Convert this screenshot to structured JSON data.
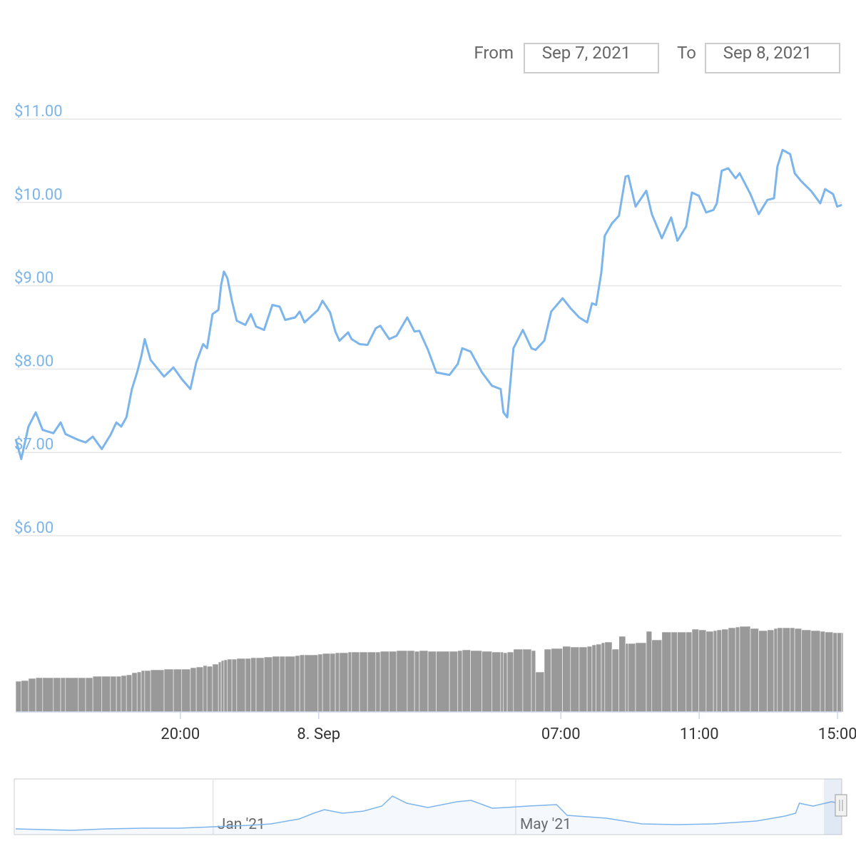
{
  "range_selector": {
    "from_label": "From",
    "from": "Sep 7, 2021",
    "to_label": "To",
    "to": "Sep 8, 2021"
  },
  "chart_data": {
    "type": "line",
    "color": "#7cb5ec",
    "x": [
      15.24,
      15.4,
      15.61,
      15.82,
      16.02,
      16.33,
      16.54,
      16.68,
      17.05,
      17.26,
      17.47,
      17.73,
      17.98,
      18.15,
      18.29,
      18.44,
      18.6,
      18.75,
      18.87,
      18.97,
      19.14,
      19.53,
      19.8,
      20.04,
      20.29,
      20.46,
      20.66,
      20.77,
      20.93,
      21.1,
      21.18,
      21.26,
      21.36,
      21.49,
      21.63,
      21.88,
      22.04,
      22.19,
      22.42,
      22.66,
      22.87,
      23.03,
      23.32,
      23.45,
      23.59,
      23.98,
      24.11,
      24.33,
      24.48,
      24.6,
      24.85,
      24.95,
      25.18,
      25.41,
      25.65,
      25.78,
      26.04,
      26.25,
      26.56,
      26.77,
      26.91,
      27.16,
      27.4,
      27.78,
      28.02,
      28.15,
      28.39,
      28.72,
      29.01,
      29.26,
      29.34,
      29.45,
      29.63,
      29.9,
      30.15,
      30.27,
      30.52,
      30.72,
      31.05,
      31.28,
      31.53,
      31.76,
      31.9,
      32.02,
      32.17,
      32.27,
      32.48,
      32.68,
      32.87,
      32.95,
      33.16,
      33.47,
      33.63,
      33.92,
      34.19,
      34.37,
      34.62,
      34.79,
      34.99,
      35.2,
      35.41,
      35.51,
      35.65,
      35.84,
      36.05,
      36.17,
      36.48,
      36.72,
      36.97,
      37.16,
      37.26,
      37.41,
      37.63,
      37.76,
      37.96,
      38.23,
      38.5,
      38.64,
      38.87,
      38.99,
      39.12
    ],
    "values": [
      7.16,
      6.92,
      7.31,
      7.48,
      7.27,
      7.23,
      7.36,
      7.22,
      7.15,
      7.12,
      7.19,
      7.04,
      7.21,
      7.36,
      7.31,
      7.42,
      7.76,
      7.96,
      8.15,
      8.36,
      8.11,
      7.91,
      8.02,
      7.88,
      7.76,
      8.08,
      8.3,
      8.25,
      8.66,
      8.71,
      9.01,
      9.17,
      9.09,
      8.82,
      8.58,
      8.53,
      8.66,
      8.51,
      8.47,
      8.77,
      8.75,
      8.59,
      8.62,
      8.69,
      8.56,
      8.71,
      8.82,
      8.68,
      8.45,
      8.34,
      8.44,
      8.36,
      8.3,
      8.29,
      8.49,
      8.52,
      8.36,
      8.4,
      8.62,
      8.45,
      8.46,
      8.23,
      7.96,
      7.93,
      8.06,
      8.25,
      8.21,
      7.96,
      7.8,
      7.76,
      7.48,
      7.42,
      8.25,
      8.47,
      8.25,
      8.23,
      8.34,
      8.69,
      8.85,
      8.73,
      8.62,
      8.56,
      8.79,
      8.77,
      9.16,
      9.6,
      9.75,
      9.84,
      10.31,
      10.32,
      9.95,
      10.14,
      9.86,
      9.57,
      9.82,
      9.54,
      9.71,
      10.12,
      10.08,
      9.88,
      9.91,
      9.99,
      10.38,
      10.41,
      10.29,
      10.35,
      10.1,
      9.86,
      10.03,
      10.05,
      10.43,
      10.63,
      10.58,
      10.35,
      10.25,
      10.14,
      9.99,
      10.16,
      10.1,
      9.95,
      9.97
    ],
    "xlim": [
      15.24,
      39.12
    ],
    "xticks": [
      {
        "value": 20,
        "label": "20:00"
      },
      {
        "value": 24,
        "label": "8. Sep"
      },
      {
        "value": 31,
        "label": "07:00"
      },
      {
        "value": 35,
        "label": "11:00"
      },
      {
        "value": 39,
        "label": "15:00"
      }
    ],
    "ylim": [
      6,
      11
    ],
    "yticks": [
      {
        "value": 6,
        "label": "$6.00"
      },
      {
        "value": 7,
        "label": "$7.00"
      },
      {
        "value": 8,
        "label": "$8.00"
      },
      {
        "value": 9,
        "label": "$9.00"
      },
      {
        "value": 10,
        "label": "$10.00"
      },
      {
        "value": 11,
        "label": "$11.00"
      }
    ],
    "grid": true,
    "volume": {
      "color": "#999999",
      "ylim": [
        0,
        130
      ],
      "values": [
        43,
        44,
        47,
        48,
        48,
        48,
        48,
        48,
        48,
        48,
        50,
        50,
        50,
        50,
        51,
        52,
        55,
        56,
        58,
        58,
        59,
        60,
        60,
        60,
        62,
        63,
        65,
        64,
        67,
        70,
        72,
        73,
        74,
        74,
        75,
        75,
        76,
        76,
        77,
        78,
        78,
        78,
        79,
        80,
        80,
        81,
        82,
        82,
        83,
        83,
        84,
        84,
        84,
        84,
        84,
        85,
        85,
        86,
        86,
        85,
        86,
        85,
        85,
        85,
        86,
        87,
        86,
        85,
        84,
        84,
        83,
        84,
        88,
        88,
        86,
        56,
        88,
        89,
        92,
        91,
        91,
        92,
        94,
        95,
        97,
        98,
        88,
        106,
        96,
        96,
        97,
        113,
        101,
        112,
        112,
        112,
        112,
        116,
        115,
        113,
        114,
        115,
        116,
        118,
        119,
        120,
        117,
        114,
        115,
        117,
        118,
        118,
        118,
        117,
        115,
        114,
        113,
        112,
        111,
        111,
        111
      ]
    },
    "navigator": {
      "color": "#7cb5ec",
      "xlim": [
        -2.61,
        8.31
      ],
      "ylim": [
        0,
        77
      ],
      "xticks": [
        {
          "value": 0,
          "label": "Jan '21"
        },
        {
          "value": 4,
          "label": "May '21"
        }
      ],
      "x": [
        -2.61,
        -2.25,
        -1.88,
        -1.41,
        -0.93,
        -0.46,
        0.01,
        0.48,
        0.76,
        1.14,
        1.33,
        1.47,
        1.71,
        1.99,
        2.23,
        2.37,
        2.56,
        2.84,
        3.22,
        3.41,
        3.69,
        3.88,
        4.16,
        4.54,
        4.68,
        5.2,
        5.67,
        6.14,
        6.61,
        7.18,
        7.56,
        7.7,
        7.75,
        7.93,
        8.17,
        8.31
      ],
      "values": [
        8,
        7,
        6,
        8,
        9,
        9,
        11,
        13,
        15,
        22,
        30,
        35,
        30,
        33,
        40,
        54,
        44,
        38,
        46,
        48,
        37,
        38,
        40,
        42,
        27,
        23,
        15,
        14,
        15,
        19,
        26,
        30,
        44,
        40,
        46,
        44
      ]
    }
  }
}
